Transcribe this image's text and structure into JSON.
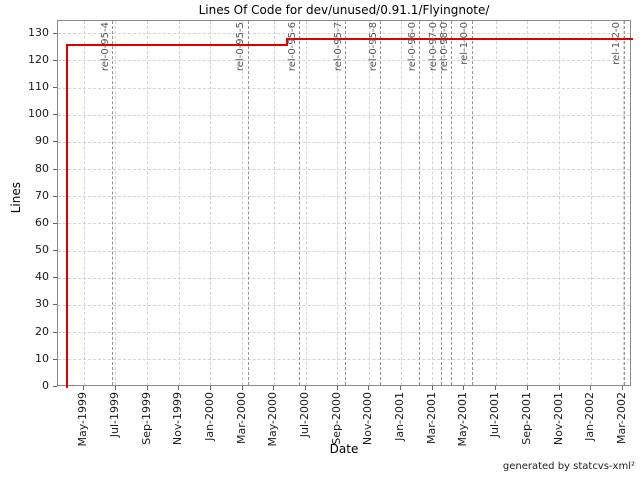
{
  "title": "Lines Of Code for dev/unused/0.91.1/Flyingnote/",
  "footer": "generated by statcvs-xml²",
  "chart_data": {
    "type": "line",
    "step": true,
    "title": "Lines Of Code for dev/unused/0.91.1/Flyingnote/",
    "xlabel": "Date",
    "ylabel": "Lines",
    "grid": true,
    "legend": "none",
    "line_color": "#dd0000",
    "x_range": [
      1999.196,
      2002.214
    ],
    "y_range": [
      0,
      134.7
    ],
    "y_ticks": [
      0,
      10,
      20,
      30,
      40,
      50,
      60,
      70,
      80,
      90,
      100,
      110,
      120,
      130
    ],
    "x_ticks": [
      {
        "label": "May-1999",
        "x": 1999.3333
      },
      {
        "label": "Jul-1999",
        "x": 1999.5
      },
      {
        "label": "Sep-1999",
        "x": 1999.6667
      },
      {
        "label": "Nov-1999",
        "x": 1999.8333
      },
      {
        "label": "Jan-2000",
        "x": 2000.0
      },
      {
        "label": "Mar-2000",
        "x": 2000.1667
      },
      {
        "label": "May-2000",
        "x": 2000.3333
      },
      {
        "label": "Jul-2000",
        "x": 2000.5
      },
      {
        "label": "Sep-2000",
        "x": 2000.6667
      },
      {
        "label": "Nov-2000",
        "x": 2000.8333
      },
      {
        "label": "Jan-2001",
        "x": 2001.0
      },
      {
        "label": "Mar-2001",
        "x": 2001.1667
      },
      {
        "label": "May-2001",
        "x": 2001.3333
      },
      {
        "label": "Jul-2001",
        "x": 2001.5
      },
      {
        "label": "Sep-2001",
        "x": 2001.6667
      },
      {
        "label": "Nov-2001",
        "x": 2001.8333
      },
      {
        "label": "Jan-2002",
        "x": 2002.0
      },
      {
        "label": "Mar-2002",
        "x": 2002.1667
      }
    ],
    "series": [
      {
        "name": "Lines Of Code",
        "points": [
          {
            "x": 1999.243,
            "y": 0
          },
          {
            "x": 1999.243,
            "y": 126
          },
          {
            "x": 2000.4,
            "y": 126
          },
          {
            "x": 2000.4,
            "y": 128
          },
          {
            "x": 2002.214,
            "y": 128
          }
        ]
      }
    ],
    "releases": [
      {
        "label": "rel-0-95-4",
        "x": 1999.485
      },
      {
        "label": "rel-0-95-5",
        "x": 2000.195
      },
      {
        "label": "rel-0-95-6",
        "x": 2000.468
      },
      {
        "label": "rel-0-95-7",
        "x": 2000.71
      },
      {
        "label": "rel-0-95-8",
        "x": 2000.894
      },
      {
        "label": "rel-0-96-0",
        "x": 2001.099
      },
      {
        "label": "rel-0-97-0",
        "x": 2001.21
      },
      {
        "label": "rel-0-98-0",
        "x": 2001.267
      },
      {
        "label": "rel-1-0-0",
        "x": 2001.373
      },
      {
        "label": "rel-1-2-0",
        "x": 2002.172
      }
    ]
  }
}
